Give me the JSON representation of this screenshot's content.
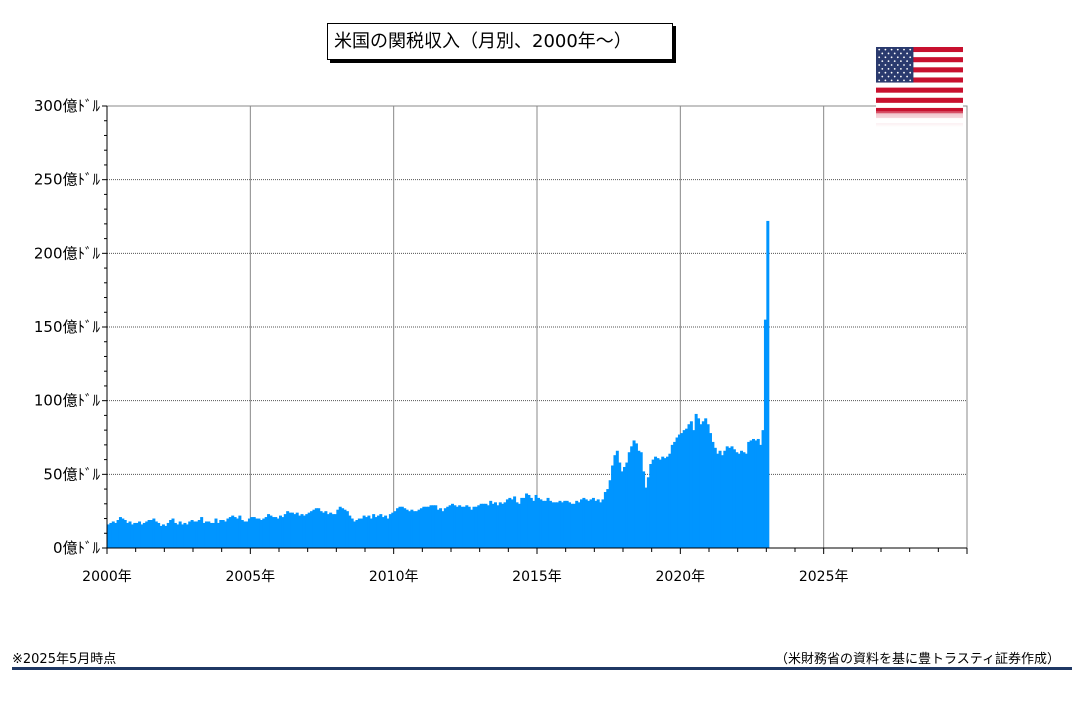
{
  "colors": {
    "bar": "#0095ff",
    "grid": "#000000",
    "rule": "#1f3864"
  },
  "flag_icon": "us-flag-icon",
  "footnote": "※2025年5月時点",
  "source": "（米財務省の資料を基に豊トラスティ証券作成）",
  "chart_data": {
    "type": "bar",
    "title": "米国の関税収入（月別、2000年～）",
    "ylim": [
      0,
      300
    ],
    "xlim": [
      2000,
      2030
    ],
    "grid": true,
    "yticks": [
      {
        "value": 0,
        "label": "0億ﾄﾞﾙ"
      },
      {
        "value": 50,
        "label": "50億ﾄﾞﾙ"
      },
      {
        "value": 100,
        "label": "100億ﾄﾞﾙ"
      },
      {
        "value": 150,
        "label": "150億ﾄﾞﾙ"
      },
      {
        "value": 200,
        "label": "200億ﾄﾞﾙ"
      },
      {
        "value": 250,
        "label": "250億ﾄﾞﾙ"
      },
      {
        "value": 300,
        "label": "300億ﾄﾞﾙ"
      }
    ],
    "xticks": [
      {
        "value": 2000,
        "label": "2000年"
      },
      {
        "value": 2005,
        "label": "2005年"
      },
      {
        "value": 2010,
        "label": "2010年"
      },
      {
        "value": 2015,
        "label": "2015年"
      },
      {
        "value": 2020,
        "label": "2020年"
      },
      {
        "value": 2025,
        "label": "2025年"
      }
    ],
    "start": "2000-01",
    "frequency": "monthly",
    "values": [
      16,
      17,
      18,
      17,
      19,
      21,
      20,
      19,
      17,
      18,
      16,
      17,
      17,
      18,
      16,
      17,
      18,
      19,
      19,
      20,
      18,
      17,
      15,
      16,
      15,
      17,
      19,
      20,
      17,
      16,
      18,
      16,
      17,
      16,
      18,
      19,
      18,
      18,
      19,
      21,
      17,
      18,
      18,
      17,
      17,
      20,
      17,
      19,
      19,
      18,
      20,
      21,
      22,
      21,
      20,
      22,
      19,
      18,
      18,
      20,
      21,
      21,
      20,
      20,
      19,
      20,
      21,
      23,
      22,
      21,
      21,
      20,
      22,
      21,
      23,
      25,
      24,
      24,
      23,
      24,
      22,
      23,
      22,
      23,
      24,
      25,
      26,
      27,
      27,
      25,
      24,
      25,
      23,
      24,
      23,
      23,
      26,
      28,
      27,
      26,
      25,
      22,
      20,
      18,
      19,
      20,
      20,
      22,
      21,
      22,
      20,
      23,
      21,
      22,
      23,
      21,
      22,
      20,
      23,
      24,
      25,
      27,
      28,
      28,
      27,
      26,
      25,
      26,
      25,
      25,
      26,
      27,
      28,
      28,
      28,
      29,
      29,
      29,
      26,
      27,
      25,
      27,
      28,
      29,
      30,
      29,
      28,
      29,
      28,
      28,
      29,
      28,
      26,
      28,
      28,
      29,
      30,
      30,
      30,
      29,
      32,
      30,
      31,
      29,
      31,
      30,
      31,
      33,
      34,
      33,
      35,
      31,
      30,
      34,
      34,
      37,
      36,
      34,
      32,
      36,
      34,
      33,
      32,
      32,
      34,
      32,
      31,
      31,
      31,
      32,
      31,
      32,
      32,
      31,
      30,
      30,
      32,
      31,
      33,
      34,
      33,
      32,
      33,
      34,
      32,
      33,
      31,
      33,
      38,
      40,
      46,
      56,
      63,
      66,
      58,
      52,
      55,
      58,
      65,
      69,
      73,
      71,
      66,
      65,
      52,
      41,
      48,
      57,
      60,
      62,
      61,
      60,
      62,
      61,
      62,
      64,
      70,
      72,
      75,
      77,
      78,
      80,
      81,
      84,
      86,
      80,
      91,
      88,
      84,
      86,
      88,
      84,
      78,
      72,
      68,
      64,
      66,
      63,
      66,
      69,
      68,
      69,
      67,
      65,
      64,
      66,
      65,
      64,
      72,
      73,
      74,
      73,
      74,
      70,
      80,
      155,
      222
    ]
  }
}
